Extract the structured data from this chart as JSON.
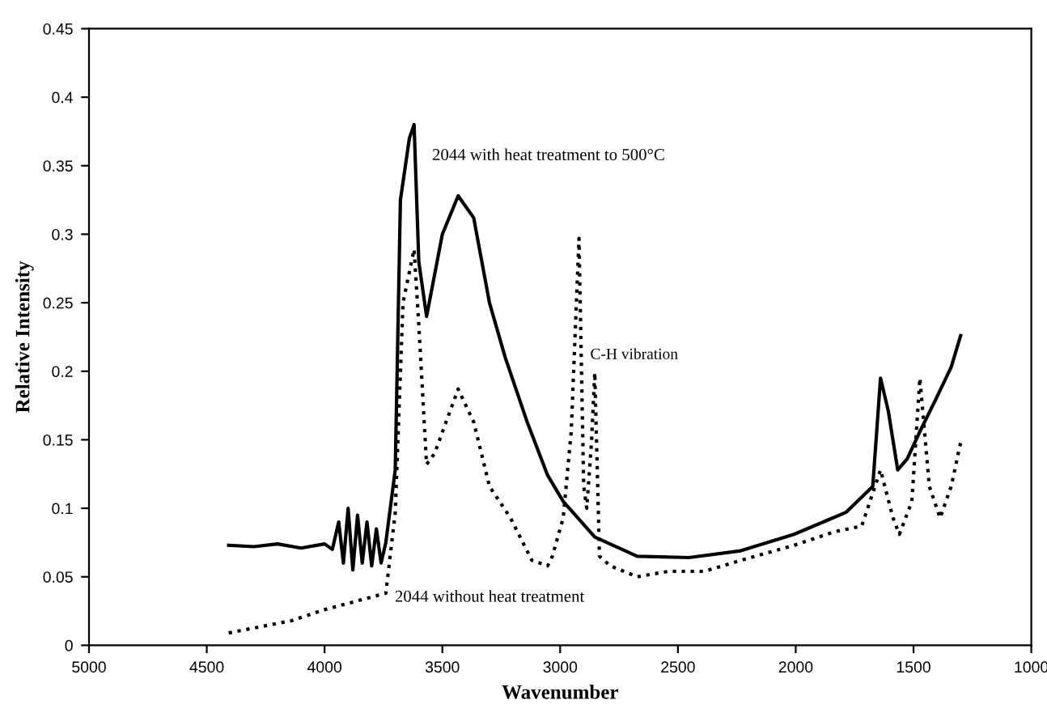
{
  "chart_data": {
    "type": "line",
    "xlabel": "Wavenumber",
    "ylabel": "Relative Intensity",
    "xlim": [
      5000,
      1000
    ],
    "xticks": [
      5000,
      4500,
      4000,
      3500,
      3000,
      2500,
      2000,
      1500,
      1000
    ],
    "ylim": [
      0,
      0.45
    ],
    "yticks": [
      0,
      0.05,
      0.1,
      0.15,
      0.2,
      0.25,
      0.3,
      0.35,
      0.4,
      0.45
    ],
    "grid": false,
    "legend": false,
    "series": [
      {
        "name": "2044 with heat treatment to 500°C",
        "color": "#000000",
        "line_style": "solid",
        "x": [
          4407,
          4300,
          4200,
          4100,
          4000,
          3967,
          3940,
          3920,
          3900,
          3880,
          3860,
          3840,
          3820,
          3800,
          3780,
          3760,
          3740,
          3700,
          3678,
          3640,
          3620,
          3600,
          3567,
          3500,
          3433,
          3367,
          3300,
          3233,
          3140,
          3053,
          2987,
          2853,
          2673,
          2453,
          2233,
          2007,
          1787,
          1673,
          1640,
          1607,
          1567,
          1527,
          1473,
          1407,
          1340,
          1300
        ],
        "values": [
          0.073,
          0.072,
          0.074,
          0.071,
          0.074,
          0.07,
          0.09,
          0.06,
          0.1,
          0.055,
          0.095,
          0.06,
          0.09,
          0.058,
          0.085,
          0.06,
          0.075,
          0.128,
          0.325,
          0.37,
          0.38,
          0.28,
          0.24,
          0.3,
          0.328,
          0.312,
          0.25,
          0.21,
          0.163,
          0.124,
          0.105,
          0.079,
          0.065,
          0.064,
          0.069,
          0.081,
          0.097,
          0.116,
          0.195,
          0.171,
          0.128,
          0.136,
          0.156,
          0.179,
          0.203,
          0.226
        ]
      },
      {
        "name": "2044 without heat treatment",
        "color": "#000000",
        "line_style": "dotted",
        "x": [
          4407,
          4140,
          4000,
          3740,
          3700,
          3667,
          3620,
          3600,
          3567,
          3533,
          3433,
          3367,
          3300,
          3211,
          3120,
          3053,
          3033,
          2987,
          2953,
          2920,
          2900,
          2887,
          2867,
          2853,
          2833,
          2787,
          2673,
          2540,
          2387,
          2233,
          2007,
          1833,
          1720,
          1640,
          1587,
          1560,
          1507,
          1473,
          1433,
          1387,
          1340,
          1300
        ],
        "values": [
          0.009,
          0.018,
          0.026,
          0.038,
          0.097,
          0.25,
          0.289,
          0.234,
          0.132,
          0.14,
          0.187,
          0.163,
          0.116,
          0.093,
          0.062,
          0.058,
          0.065,
          0.093,
          0.156,
          0.297,
          0.116,
          0.1,
          0.148,
          0.199,
          0.065,
          0.058,
          0.05,
          0.054,
          0.054,
          0.062,
          0.073,
          0.083,
          0.087,
          0.128,
          0.093,
          0.081,
          0.105,
          0.195,
          0.116,
          0.093,
          0.116,
          0.148
        ]
      }
    ],
    "annotations": [
      "C-H vibration"
    ]
  }
}
